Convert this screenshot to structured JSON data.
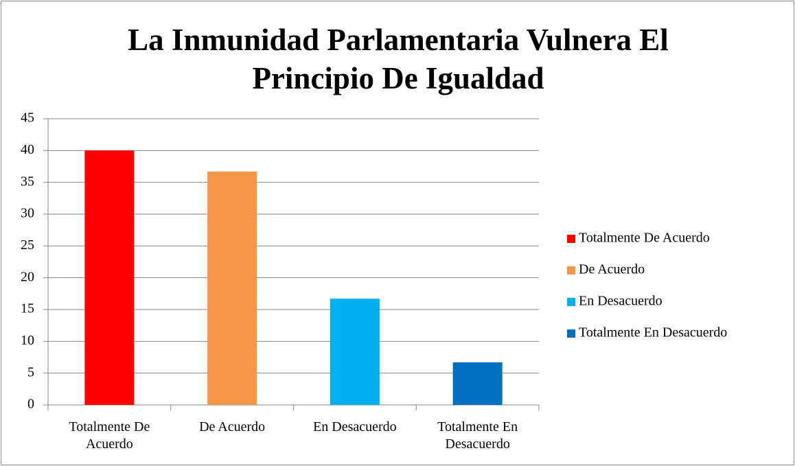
{
  "chart_data": {
    "type": "bar",
    "title": "La Inmunidad Parlamentaria Vulnera El Principio De Igualdad",
    "categories": [
      "Totalmente De Acuerdo",
      "De Acuerdo",
      "En Desacuerdo",
      "Totalmente En Desacuerdo"
    ],
    "values": [
      40,
      36.7,
      16.7,
      6.7
    ],
    "colors": [
      "#ff0000",
      "#f79646",
      "#00b0f0",
      "#0070c0"
    ],
    "ylim": [
      0,
      45
    ],
    "yticks": [
      0,
      5,
      10,
      15,
      20,
      25,
      30,
      35,
      40,
      45
    ],
    "grid": true,
    "legend": "right"
  }
}
